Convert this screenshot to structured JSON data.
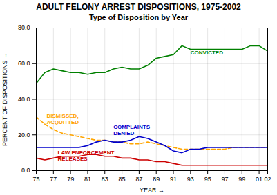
{
  "chart_data": {
    "type": "line",
    "title": "ADULT FELONY ARREST DISPOSITIONS, 1975-2002",
    "subtitle": "Type of Disposition by Year",
    "xlabel": "YEAR",
    "ylabel": "PERCENT OF DISPOSITIONS",
    "x": [
      75,
      76,
      77,
      78,
      79,
      80,
      81,
      82,
      83,
      84,
      85,
      86,
      87,
      88,
      89,
      90,
      91,
      92,
      93,
      94,
      95,
      96,
      97,
      98,
      99,
      100,
      101,
      102
    ],
    "series": [
      {
        "color": "#008000",
        "line_style": "solid",
        "values": [
          49,
          55,
          57,
          56,
          55,
          55,
          54,
          55,
          55,
          57,
          58,
          57,
          57,
          59,
          63,
          64,
          65,
          70,
          68,
          68,
          68,
          68,
          68,
          68,
          68,
          70,
          70,
          67
        ]
      },
      {
        "color": "#FFA500",
        "line_style": "dashed",
        "values": [
          30,
          26,
          23,
          21,
          20,
          19,
          18,
          17,
          17,
          16,
          16,
          15,
          15,
          16,
          15,
          14,
          13,
          12,
          12,
          12,
          12,
          12,
          12,
          13,
          13,
          13,
          13,
          13
        ]
      },
      {
        "color": "#0000CC",
        "line_style": "solid",
        "values": [
          13,
          13,
          13,
          13,
          13,
          13,
          14,
          16,
          17,
          16,
          16,
          17,
          19,
          18,
          16,
          14,
          11,
          10,
          12,
          12,
          13,
          13,
          13,
          13,
          13,
          13,
          13,
          13
        ]
      },
      {
        "color": "#CC0000",
        "line_style": "solid",
        "values": [
          7,
          6,
          7,
          8,
          8,
          8,
          9,
          9,
          8,
          8,
          7,
          7,
          6,
          6,
          5,
          5,
          4,
          3,
          3,
          3,
          3,
          3,
          3,
          3,
          3,
          3,
          3,
          3
        ]
      }
    ],
    "annotations": [
      {
        "text": "CONVICTED",
        "x": 93,
        "y": 65,
        "color": "#008000"
      },
      {
        "text": "COMPLAINTS\nDENIED",
        "x": 84,
        "y": 20,
        "color": "#0000CC"
      },
      {
        "text": "DISMISSED,\nACQUITTED",
        "x": 76.2,
        "y": 26,
        "color": "#FFA500"
      },
      {
        "text": "LAW ENFORCEMENT\nRELEASES",
        "x": 77.5,
        "y": 5.5,
        "color": "#CC0000"
      }
    ],
    "xlim": [
      75,
      102
    ],
    "xticks": [
      75,
      77,
      79,
      81,
      83,
      85,
      87,
      89,
      91,
      93,
      95,
      97,
      99,
      {
        "value": 101,
        "label": "01"
      },
      {
        "value": 102,
        "label": "02"
      }
    ],
    "ylim": [
      0,
      80
    ],
    "yticks": [
      {
        "value": 0,
        "label": "0.0"
      },
      {
        "value": 20,
        "label": "20.0"
      },
      {
        "value": 40,
        "label": "40.0"
      },
      {
        "value": 60,
        "label": "60.0"
      },
      {
        "value": 80,
        "label": "80.0"
      }
    ],
    "grid": true
  }
}
